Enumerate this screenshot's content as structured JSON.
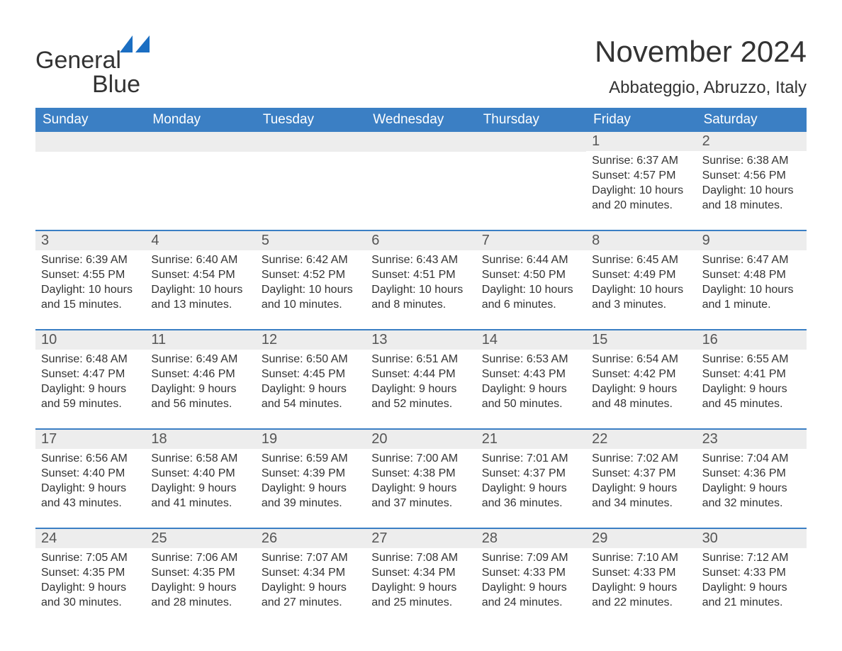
{
  "logo": {
    "text_general": "General",
    "text_blue": "Blue",
    "sail_color": "#1b6ec2"
  },
  "title": {
    "month": "November 2024",
    "location": "Abbateggio, Abruzzo, Italy"
  },
  "colors": {
    "header_bg": "#3b7fc4",
    "header_text": "#ffffff",
    "row_band": "#ededed",
    "text": "#333333",
    "border": "#3b7fc4",
    "background": "#ffffff"
  },
  "day_names": [
    "Sunday",
    "Monday",
    "Tuesday",
    "Wednesday",
    "Thursday",
    "Friday",
    "Saturday"
  ],
  "weeks": [
    {
      "days": [
        {
          "empty": true
        },
        {
          "empty": true
        },
        {
          "empty": true
        },
        {
          "empty": true
        },
        {
          "empty": true
        },
        {
          "num": "1",
          "sunrise": "Sunrise: 6:37 AM",
          "sunset": "Sunset: 4:57 PM",
          "daylight1": "Daylight: 10 hours",
          "daylight2": "and 20 minutes."
        },
        {
          "num": "2",
          "sunrise": "Sunrise: 6:38 AM",
          "sunset": "Sunset: 4:56 PM",
          "daylight1": "Daylight: 10 hours",
          "daylight2": "and 18 minutes."
        }
      ]
    },
    {
      "days": [
        {
          "num": "3",
          "sunrise": "Sunrise: 6:39 AM",
          "sunset": "Sunset: 4:55 PM",
          "daylight1": "Daylight: 10 hours",
          "daylight2": "and 15 minutes."
        },
        {
          "num": "4",
          "sunrise": "Sunrise: 6:40 AM",
          "sunset": "Sunset: 4:54 PM",
          "daylight1": "Daylight: 10 hours",
          "daylight2": "and 13 minutes."
        },
        {
          "num": "5",
          "sunrise": "Sunrise: 6:42 AM",
          "sunset": "Sunset: 4:52 PM",
          "daylight1": "Daylight: 10 hours",
          "daylight2": "and 10 minutes."
        },
        {
          "num": "6",
          "sunrise": "Sunrise: 6:43 AM",
          "sunset": "Sunset: 4:51 PM",
          "daylight1": "Daylight: 10 hours",
          "daylight2": "and 8 minutes."
        },
        {
          "num": "7",
          "sunrise": "Sunrise: 6:44 AM",
          "sunset": "Sunset: 4:50 PM",
          "daylight1": "Daylight: 10 hours",
          "daylight2": "and 6 minutes."
        },
        {
          "num": "8",
          "sunrise": "Sunrise: 6:45 AM",
          "sunset": "Sunset: 4:49 PM",
          "daylight1": "Daylight: 10 hours",
          "daylight2": "and 3 minutes."
        },
        {
          "num": "9",
          "sunrise": "Sunrise: 6:47 AM",
          "sunset": "Sunset: 4:48 PM",
          "daylight1": "Daylight: 10 hours",
          "daylight2": "and 1 minute."
        }
      ]
    },
    {
      "days": [
        {
          "num": "10",
          "sunrise": "Sunrise: 6:48 AM",
          "sunset": "Sunset: 4:47 PM",
          "daylight1": "Daylight: 9 hours",
          "daylight2": "and 59 minutes."
        },
        {
          "num": "11",
          "sunrise": "Sunrise: 6:49 AM",
          "sunset": "Sunset: 4:46 PM",
          "daylight1": "Daylight: 9 hours",
          "daylight2": "and 56 minutes."
        },
        {
          "num": "12",
          "sunrise": "Sunrise: 6:50 AM",
          "sunset": "Sunset: 4:45 PM",
          "daylight1": "Daylight: 9 hours",
          "daylight2": "and 54 minutes."
        },
        {
          "num": "13",
          "sunrise": "Sunrise: 6:51 AM",
          "sunset": "Sunset: 4:44 PM",
          "daylight1": "Daylight: 9 hours",
          "daylight2": "and 52 minutes."
        },
        {
          "num": "14",
          "sunrise": "Sunrise: 6:53 AM",
          "sunset": "Sunset: 4:43 PM",
          "daylight1": "Daylight: 9 hours",
          "daylight2": "and 50 minutes."
        },
        {
          "num": "15",
          "sunrise": "Sunrise: 6:54 AM",
          "sunset": "Sunset: 4:42 PM",
          "daylight1": "Daylight: 9 hours",
          "daylight2": "and 48 minutes."
        },
        {
          "num": "16",
          "sunrise": "Sunrise: 6:55 AM",
          "sunset": "Sunset: 4:41 PM",
          "daylight1": "Daylight: 9 hours",
          "daylight2": "and 45 minutes."
        }
      ]
    },
    {
      "days": [
        {
          "num": "17",
          "sunrise": "Sunrise: 6:56 AM",
          "sunset": "Sunset: 4:40 PM",
          "daylight1": "Daylight: 9 hours",
          "daylight2": "and 43 minutes."
        },
        {
          "num": "18",
          "sunrise": "Sunrise: 6:58 AM",
          "sunset": "Sunset: 4:40 PM",
          "daylight1": "Daylight: 9 hours",
          "daylight2": "and 41 minutes."
        },
        {
          "num": "19",
          "sunrise": "Sunrise: 6:59 AM",
          "sunset": "Sunset: 4:39 PM",
          "daylight1": "Daylight: 9 hours",
          "daylight2": "and 39 minutes."
        },
        {
          "num": "20",
          "sunrise": "Sunrise: 7:00 AM",
          "sunset": "Sunset: 4:38 PM",
          "daylight1": "Daylight: 9 hours",
          "daylight2": "and 37 minutes."
        },
        {
          "num": "21",
          "sunrise": "Sunrise: 7:01 AM",
          "sunset": "Sunset: 4:37 PM",
          "daylight1": "Daylight: 9 hours",
          "daylight2": "and 36 minutes."
        },
        {
          "num": "22",
          "sunrise": "Sunrise: 7:02 AM",
          "sunset": "Sunset: 4:37 PM",
          "daylight1": "Daylight: 9 hours",
          "daylight2": "and 34 minutes."
        },
        {
          "num": "23",
          "sunrise": "Sunrise: 7:04 AM",
          "sunset": "Sunset: 4:36 PM",
          "daylight1": "Daylight: 9 hours",
          "daylight2": "and 32 minutes."
        }
      ]
    },
    {
      "days": [
        {
          "num": "24",
          "sunrise": "Sunrise: 7:05 AM",
          "sunset": "Sunset: 4:35 PM",
          "daylight1": "Daylight: 9 hours",
          "daylight2": "and 30 minutes."
        },
        {
          "num": "25",
          "sunrise": "Sunrise: 7:06 AM",
          "sunset": "Sunset: 4:35 PM",
          "daylight1": "Daylight: 9 hours",
          "daylight2": "and 28 minutes."
        },
        {
          "num": "26",
          "sunrise": "Sunrise: 7:07 AM",
          "sunset": "Sunset: 4:34 PM",
          "daylight1": "Daylight: 9 hours",
          "daylight2": "and 27 minutes."
        },
        {
          "num": "27",
          "sunrise": "Sunrise: 7:08 AM",
          "sunset": "Sunset: 4:34 PM",
          "daylight1": "Daylight: 9 hours",
          "daylight2": "and 25 minutes."
        },
        {
          "num": "28",
          "sunrise": "Sunrise: 7:09 AM",
          "sunset": "Sunset: 4:33 PM",
          "daylight1": "Daylight: 9 hours",
          "daylight2": "and 24 minutes."
        },
        {
          "num": "29",
          "sunrise": "Sunrise: 7:10 AM",
          "sunset": "Sunset: 4:33 PM",
          "daylight1": "Daylight: 9 hours",
          "daylight2": "and 22 minutes."
        },
        {
          "num": "30",
          "sunrise": "Sunrise: 7:12 AM",
          "sunset": "Sunset: 4:33 PM",
          "daylight1": "Daylight: 9 hours",
          "daylight2": "and 21 minutes."
        }
      ]
    }
  ]
}
